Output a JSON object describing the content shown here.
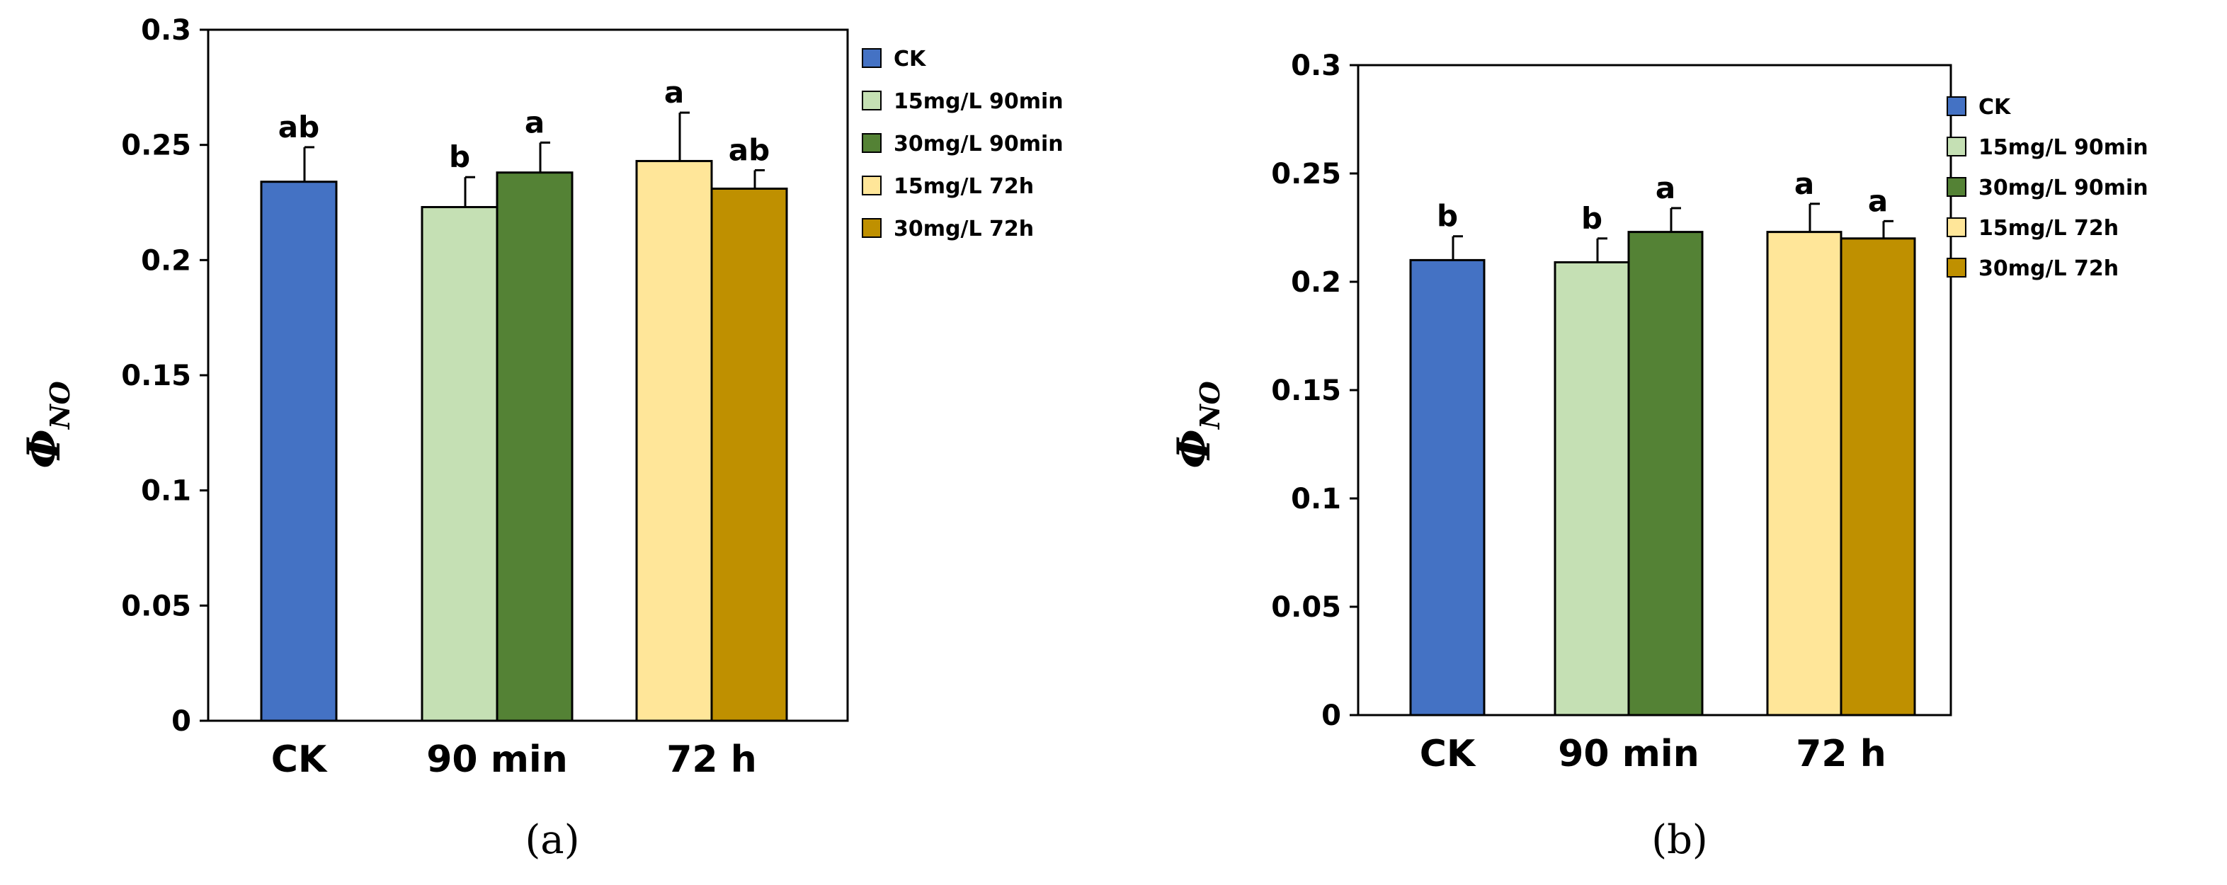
{
  "colors": {
    "CK": "#4472C4",
    "15mg/L 90min": "#C5E0B4",
    "30mg/L 90min": "#548235",
    "15mg/L 72h": "#FFE699",
    "30mg/L 72h": "#BF9000"
  },
  "chart_data": [
    {
      "type": "bar",
      "panel_label": "(a)",
      "ylabel_main": "Φ",
      "ylabel_sub": "NO",
      "ylim": [
        0,
        0.3
      ],
      "yticks": [
        "0",
        "0.05",
        "0.1",
        "0.15",
        "0.2",
        "0.25",
        "0.3"
      ],
      "categories": [
        "CK",
        "90 min",
        "72 h"
      ],
      "legend_labels": [
        "CK",
        "15mg/L 90min",
        "30mg/L 90min",
        "15mg/L 72h",
        "30mg/L 72h"
      ],
      "bars": [
        {
          "series": "CK",
          "category": "CK",
          "value": 0.234,
          "error": 0.015,
          "sig": "ab"
        },
        {
          "series": "15mg/L 90min",
          "category": "90 min",
          "value": 0.223,
          "error": 0.013,
          "sig": "b"
        },
        {
          "series": "30mg/L 90min",
          "category": "90 min",
          "value": 0.238,
          "error": 0.013,
          "sig": "a"
        },
        {
          "series": "15mg/L 72h",
          "category": "72 h",
          "value": 0.243,
          "error": 0.021,
          "sig": "a"
        },
        {
          "series": "30mg/L 72h",
          "category": "72 h",
          "value": 0.231,
          "error": 0.008,
          "sig": "ab"
        }
      ]
    },
    {
      "type": "bar",
      "panel_label": "(b)",
      "ylabel_main": "Φ",
      "ylabel_sub": "NO",
      "ylim": [
        0,
        0.3
      ],
      "yticks": [
        "0",
        "0.05",
        "0.1",
        "0.15",
        "0.2",
        "0.25",
        "0.3"
      ],
      "categories": [
        "CK",
        "90 min",
        "72 h"
      ],
      "legend_labels": [
        "CK",
        "15mg/L 90min",
        "30mg/L 90min",
        "15mg/L 72h",
        "30mg/L 72h"
      ],
      "bars": [
        {
          "series": "CK",
          "category": "CK",
          "value": 0.21,
          "error": 0.011,
          "sig": "b"
        },
        {
          "series": "15mg/L 90min",
          "category": "90 min",
          "value": 0.209,
          "error": 0.011,
          "sig": "b"
        },
        {
          "series": "30mg/L 90min",
          "category": "90 min",
          "value": 0.223,
          "error": 0.011,
          "sig": "a"
        },
        {
          "series": "15mg/L 72h",
          "category": "72 h",
          "value": 0.223,
          "error": 0.013,
          "sig": "a"
        },
        {
          "series": "30mg/L 72h",
          "category": "72 h",
          "value": 0.22,
          "error": 0.008,
          "sig": "a"
        }
      ]
    }
  ]
}
